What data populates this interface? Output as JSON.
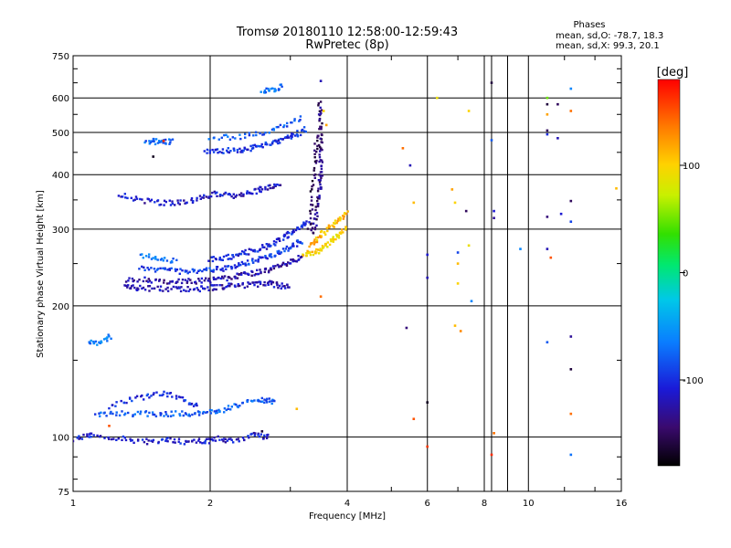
{
  "chart_data": {
    "type": "scatter",
    "title": "Tromsø 20180110 12:58:00-12:59:43",
    "subtitle": "RwPretec (8p)",
    "xlabel": "Frequency [MHz]",
    "ylabel": "Stationary phase Virtual Height [km]",
    "xscale": "log",
    "yscale": "log",
    "xlim": [
      1,
      16
    ],
    "ylim": [
      75,
      750
    ],
    "xticks": [
      1,
      2,
      4,
      6,
      8,
      10,
      16
    ],
    "xtick_labels": [
      "1",
      "2",
      "4",
      "6",
      "8",
      "10",
      "16"
    ],
    "yticks": [
      75,
      100,
      200,
      300,
      400,
      500,
      600,
      750
    ],
    "ytick_labels": [
      "75",
      "100",
      "200",
      "300",
      "400",
      "500",
      "600",
      "750"
    ],
    "grid": true,
    "stats": {
      "heading": "Phases",
      "line1": "mean, sd,O: -78.7, 18.3",
      "line2": "mean, sd,X:  99.3, 20.1"
    },
    "colorbar": {
      "label": "[deg]",
      "min": -180,
      "max": 180,
      "ticks": [
        100,
        0,
        -100
      ],
      "tick_labels": [
        "100",
        "0",
        "-100"
      ]
    },
    "traces": [
      {
        "f": [
          1.0,
          1.06,
          1.1,
          1.2,
          1.3,
          1.4,
          1.5,
          1.6,
          1.7,
          1.8,
          1.9,
          2.0,
          2.1,
          2.2,
          2.35,
          2.5,
          2.6,
          2.7
        ],
        "h": [
          99,
          100,
          101,
          100,
          99,
          98,
          97,
          99,
          98,
          97,
          98,
          98,
          99,
          98,
          99,
          101,
          100,
          101
        ],
        "phase": -110
      },
      {
        "f": [
          1.12,
          1.2,
          1.3,
          1.4,
          1.5,
          1.6,
          1.7,
          1.8,
          1.9,
          2.0,
          2.1,
          2.2,
          2.35,
          2.5,
          2.6,
          2.7,
          2.8
        ],
        "h": [
          113,
          113,
          113,
          113,
          113,
          113,
          113,
          113,
          113,
          114,
          115,
          117,
          119,
          121,
          122,
          121,
          120
        ],
        "phase": -80
      },
      {
        "f": [
          1.2,
          1.3,
          1.4,
          1.5,
          1.6,
          1.7,
          1.8,
          1.9
        ],
        "h": [
          117,
          121,
          123,
          125,
          126,
          123,
          120,
          118
        ],
        "phase": -100
      },
      {
        "f": [
          1.08,
          1.12,
          1.18,
          1.22
        ],
        "h": [
          165,
          165,
          167,
          171
        ],
        "phase": -65
      },
      {
        "f": [
          1.3,
          1.35,
          1.4,
          1.5,
          1.6,
          1.7,
          1.8,
          1.9,
          2.0,
          2.1,
          2.2,
          2.3,
          2.4,
          2.5,
          2.6,
          2.7,
          2.8,
          2.9,
          3.0
        ],
        "h": [
          220,
          220,
          220,
          219,
          219,
          218,
          218,
          219,
          220,
          221,
          222,
          223,
          223,
          224,
          224,
          225,
          223,
          222,
          220
        ],
        "phase": -120
      },
      {
        "f": [
          1.3,
          1.4,
          1.5,
          1.6,
          1.7,
          1.8,
          1.9,
          2.0,
          2.1,
          2.2,
          2.3,
          2.4,
          2.5,
          2.6,
          2.7,
          2.8,
          2.9,
          3.0,
          3.1,
          3.2
        ],
        "h": [
          230,
          230,
          229,
          228,
          228,
          228,
          228,
          229,
          230,
          232,
          234,
          236,
          238,
          240,
          243,
          246,
          249,
          252,
          256,
          260
        ],
        "phase": -125
      },
      {
        "f": [
          1.4,
          1.5,
          1.6,
          1.7,
          1.8,
          1.9,
          2.0,
          2.1,
          2.2,
          2.3,
          2.4,
          2.5,
          2.6,
          2.7,
          2.8,
          2.9,
          3.0,
          3.1,
          3.2
        ],
        "h": [
          245,
          243,
          241,
          240,
          239,
          240,
          241,
          243,
          245,
          248,
          251,
          254,
          257,
          260,
          264,
          268,
          273,
          278,
          284
        ],
        "phase": -95
      },
      {
        "f": [
          1.4,
          1.5,
          1.6,
          1.7
        ],
        "h": [
          262,
          258,
          255,
          253
        ],
        "phase": -70
      },
      {
        "f": [
          2.0,
          2.1,
          2.2,
          2.3,
          2.4,
          2.5,
          2.6,
          2.7,
          2.8,
          2.9,
          3.0,
          3.1,
          3.2,
          3.3
        ],
        "h": [
          255,
          257,
          259,
          262,
          265,
          268,
          272,
          276,
          281,
          287,
          293,
          300,
          307,
          312
        ],
        "phase": -105
      },
      {
        "f": [
          3.2,
          3.3,
          3.4,
          3.5,
          3.6,
          3.7,
          3.8,
          3.9,
          4.0
        ],
        "h": [
          262,
          264,
          266,
          270,
          275,
          281,
          288,
          296,
          305
        ],
        "phase": 100
      },
      {
        "f": [
          3.3,
          3.4,
          3.5,
          3.6,
          3.7,
          3.8,
          3.9,
          4.0
        ],
        "h": [
          275,
          282,
          290,
          298,
          305,
          312,
          320,
          328
        ],
        "phase": 110
      },
      {
        "f": [
          3.35,
          3.4,
          3.43,
          3.46,
          3.48,
          3.5,
          3.5,
          3.5,
          3.5,
          3.5,
          3.5,
          3.49,
          3.48
        ],
        "h": [
          290,
          310,
          330,
          350,
          370,
          390,
          410,
          440,
          470,
          500,
          530,
          560,
          590
        ],
        "phase": -140
      },
      {
        "f": [
          3.3,
          3.33,
          3.36,
          3.4,
          3.42,
          3.45
        ],
        "h": [
          300,
          340,
          380,
          420,
          460,
          500
        ],
        "phase": -150
      },
      {
        "f": [
          1.25,
          1.35,
          1.45,
          1.55,
          1.65,
          1.75,
          1.85,
          1.95,
          2.05,
          2.15,
          2.25,
          2.35,
          2.45,
          2.55,
          2.65,
          2.75,
          2.85
        ],
        "h": [
          360,
          352,
          348,
          345,
          344,
          346,
          350,
          356,
          362,
          360,
          358,
          360,
          364,
          368,
          372,
          376,
          380
        ],
        "phase": -115
      },
      {
        "f": [
          1.45,
          1.5,
          1.55,
          1.6,
          1.65
        ],
        "h": [
          478,
          477,
          476,
          476,
          477
        ],
        "phase": -75
      },
      {
        "f": [
          1.95,
          2.05,
          2.15,
          2.25,
          2.35,
          2.45,
          2.55,
          2.65,
          2.75,
          2.85,
          2.95,
          3.05,
          3.15,
          3.25
        ],
        "h": [
          452,
          452,
          453,
          455,
          457,
          460,
          464,
          468,
          473,
          479,
          486,
          492,
          500,
          508
        ],
        "phase": -100
      },
      {
        "f": [
          2.0,
          2.2,
          2.4,
          2.6,
          2.8,
          3.0,
          3.2
        ],
        "h": [
          485,
          487,
          492,
          500,
          512,
          525,
          545
        ],
        "phase": -80
      },
      {
        "f": [
          2.6,
          2.7,
          2.8,
          2.9
        ],
        "h": [
          615,
          625,
          632,
          640
        ],
        "phase": -70
      }
    ],
    "scatter": [
      {
        "f": 5.3,
        "h": 460,
        "phase": 140
      },
      {
        "f": 5.5,
        "h": 420,
        "phase": -120
      },
      {
        "f": 5.6,
        "h": 345,
        "phase": 110
      },
      {
        "f": 5.4,
        "h": 178,
        "phase": -140
      },
      {
        "f": 5.6,
        "h": 110,
        "phase": 150
      },
      {
        "f": 6.0,
        "h": 120,
        "phase": -170
      },
      {
        "f": 6.0,
        "h": 95,
        "phase": 160
      },
      {
        "f": 6.0,
        "h": 262,
        "phase": -110
      },
      {
        "f": 6.0,
        "h": 232,
        "phase": -120
      },
      {
        "f": 6.3,
        "h": 600,
        "phase": 90
      },
      {
        "f": 6.8,
        "h": 370,
        "phase": 120
      },
      {
        "f": 6.9,
        "h": 345,
        "phase": 100
      },
      {
        "f": 7.0,
        "h": 265,
        "phase": -90
      },
      {
        "f": 7.0,
        "h": 250,
        "phase": 110
      },
      {
        "f": 7.0,
        "h": 225,
        "phase": 100
      },
      {
        "f": 6.9,
        "h": 180,
        "phase": 110
      },
      {
        "f": 7.1,
        "h": 175,
        "phase": 130
      },
      {
        "f": 7.4,
        "h": 560,
        "phase": 100
      },
      {
        "f": 7.3,
        "h": 330,
        "phase": -150
      },
      {
        "f": 7.4,
        "h": 275,
        "phase": 90
      },
      {
        "f": 7.5,
        "h": 205,
        "phase": -60
      },
      {
        "f": 8.3,
        "h": 650,
        "phase": -160
      },
      {
        "f": 8.3,
        "h": 480,
        "phase": -80
      },
      {
        "f": 8.4,
        "h": 330,
        "phase": -110
      },
      {
        "f": 8.4,
        "h": 318,
        "phase": -130
      },
      {
        "f": 8.4,
        "h": 102,
        "phase": 140
      },
      {
        "f": 8.3,
        "h": 91,
        "phase": 165
      },
      {
        "f": 9.6,
        "h": 270,
        "phase": -60
      },
      {
        "f": 11.0,
        "h": 600,
        "phase": 50
      },
      {
        "f": 11.0,
        "h": 580,
        "phase": -160
      },
      {
        "f": 11.0,
        "h": 550,
        "phase": 120
      },
      {
        "f": 11.0,
        "h": 505,
        "phase": -150
      },
      {
        "f": 11.0,
        "h": 495,
        "phase": -100
      },
      {
        "f": 11.0,
        "h": 320,
        "phase": -140
      },
      {
        "f": 11.0,
        "h": 270,
        "phase": -120
      },
      {
        "f": 11.2,
        "h": 258,
        "phase": 150
      },
      {
        "f": 11.0,
        "h": 165,
        "phase": -80
      },
      {
        "f": 11.6,
        "h": 580,
        "phase": -150
      },
      {
        "f": 11.6,
        "h": 485,
        "phase": -120
      },
      {
        "f": 11.8,
        "h": 325,
        "phase": -110
      },
      {
        "f": 12.4,
        "h": 630,
        "phase": -60
      },
      {
        "f": 12.4,
        "h": 560,
        "phase": 140
      },
      {
        "f": 12.4,
        "h": 348,
        "phase": -150
      },
      {
        "f": 12.4,
        "h": 312,
        "phase": -90
      },
      {
        "f": 12.4,
        "h": 170,
        "phase": -130
      },
      {
        "f": 12.4,
        "h": 143,
        "phase": -160
      },
      {
        "f": 12.4,
        "h": 113,
        "phase": 140
      },
      {
        "f": 12.4,
        "h": 91,
        "phase": -70
      },
      {
        "f": 15.6,
        "h": 372,
        "phase": 110
      },
      {
        "f": 1.5,
        "h": 440,
        "phase": -170
      },
      {
        "f": 1.58,
        "h": 478,
        "phase": 165
      },
      {
        "f": 2.6,
        "h": 103,
        "phase": -160
      },
      {
        "f": 3.5,
        "h": 210,
        "phase": 140
      },
      {
        "f": 3.1,
        "h": 116,
        "phase": 110
      },
      {
        "f": 1.2,
        "h": 106,
        "phase": 150
      },
      {
        "f": 3.5,
        "h": 656,
        "phase": -120
      },
      {
        "f": 3.55,
        "h": 560,
        "phase": 100
      },
      {
        "f": 3.6,
        "h": 520,
        "phase": 120
      }
    ]
  }
}
